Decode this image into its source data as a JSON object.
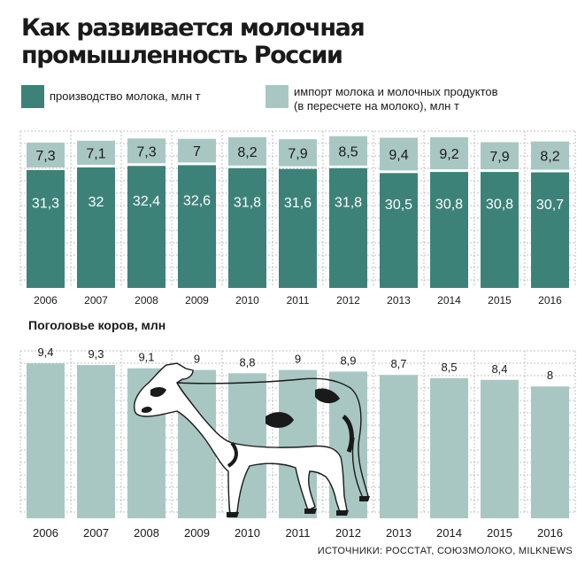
{
  "title": [
    "Как развивается молочная",
    "промышленность России"
  ],
  "legend": {
    "production": "производство молока, млн т",
    "import_line1": "импорт молока и молочных продуктов",
    "import_line2": "(в пересчете на молоко), млн т"
  },
  "colors": {
    "production": "#3d8279",
    "import": "#a8c7c3",
    "cows": "#a8c7c3",
    "grid": "#c2c2c2"
  },
  "chart_data": [
    {
      "type": "bar",
      "stacked": true,
      "categories": [
        "2006",
        "2007",
        "2008",
        "2009",
        "2010",
        "2011",
        "2012",
        "2013",
        "2014",
        "2015",
        "2016"
      ],
      "series": [
        {
          "name": "производство молока, млн т",
          "values": [
            31.3,
            32,
            32.4,
            32.6,
            31.8,
            31.6,
            31.8,
            30.5,
            30.8,
            30.8,
            30.7
          ],
          "labels": [
            "31,3",
            "32",
            "32,4",
            "32,6",
            "31,8",
            "31,6",
            "31,8",
            "30,5",
            "30,8",
            "30,8",
            "30,7"
          ]
        },
        {
          "name": "импорт молока и молочных продуктов (в пересчете на молоко), млн т",
          "values": [
            7.3,
            7.1,
            7.3,
            7,
            8.2,
            7.9,
            8.5,
            9.4,
            9.2,
            7.9,
            8.2
          ],
          "labels": [
            "7,3",
            "7,1",
            "7,3",
            "7",
            "8,2",
            "7,9",
            "8,5",
            "9,4",
            "9,2",
            "7,9",
            "8,2"
          ]
        }
      ],
      "grid": true,
      "legend_position": "top"
    },
    {
      "type": "bar",
      "title": "Поголовье коров, млн",
      "categories": [
        "2006",
        "2007",
        "2008",
        "2009",
        "2010",
        "2011",
        "2012",
        "2013",
        "2014",
        "2015",
        "2016"
      ],
      "values": [
        9.4,
        9.3,
        9.1,
        9,
        8.8,
        9,
        8.9,
        8.7,
        8.5,
        8.4,
        8
      ],
      "labels": [
        "9,4",
        "9,3",
        "9,1",
        "9",
        "8,8",
        "9",
        "8,9",
        "8,7",
        "8,5",
        "8,4",
        "8"
      ],
      "grid": true,
      "decoration": "cow-illustration"
    }
  ],
  "source": "ИСТОЧНИКИ: РОССТАТ, СОЮЗМОЛОКО, MILKNEWS"
}
